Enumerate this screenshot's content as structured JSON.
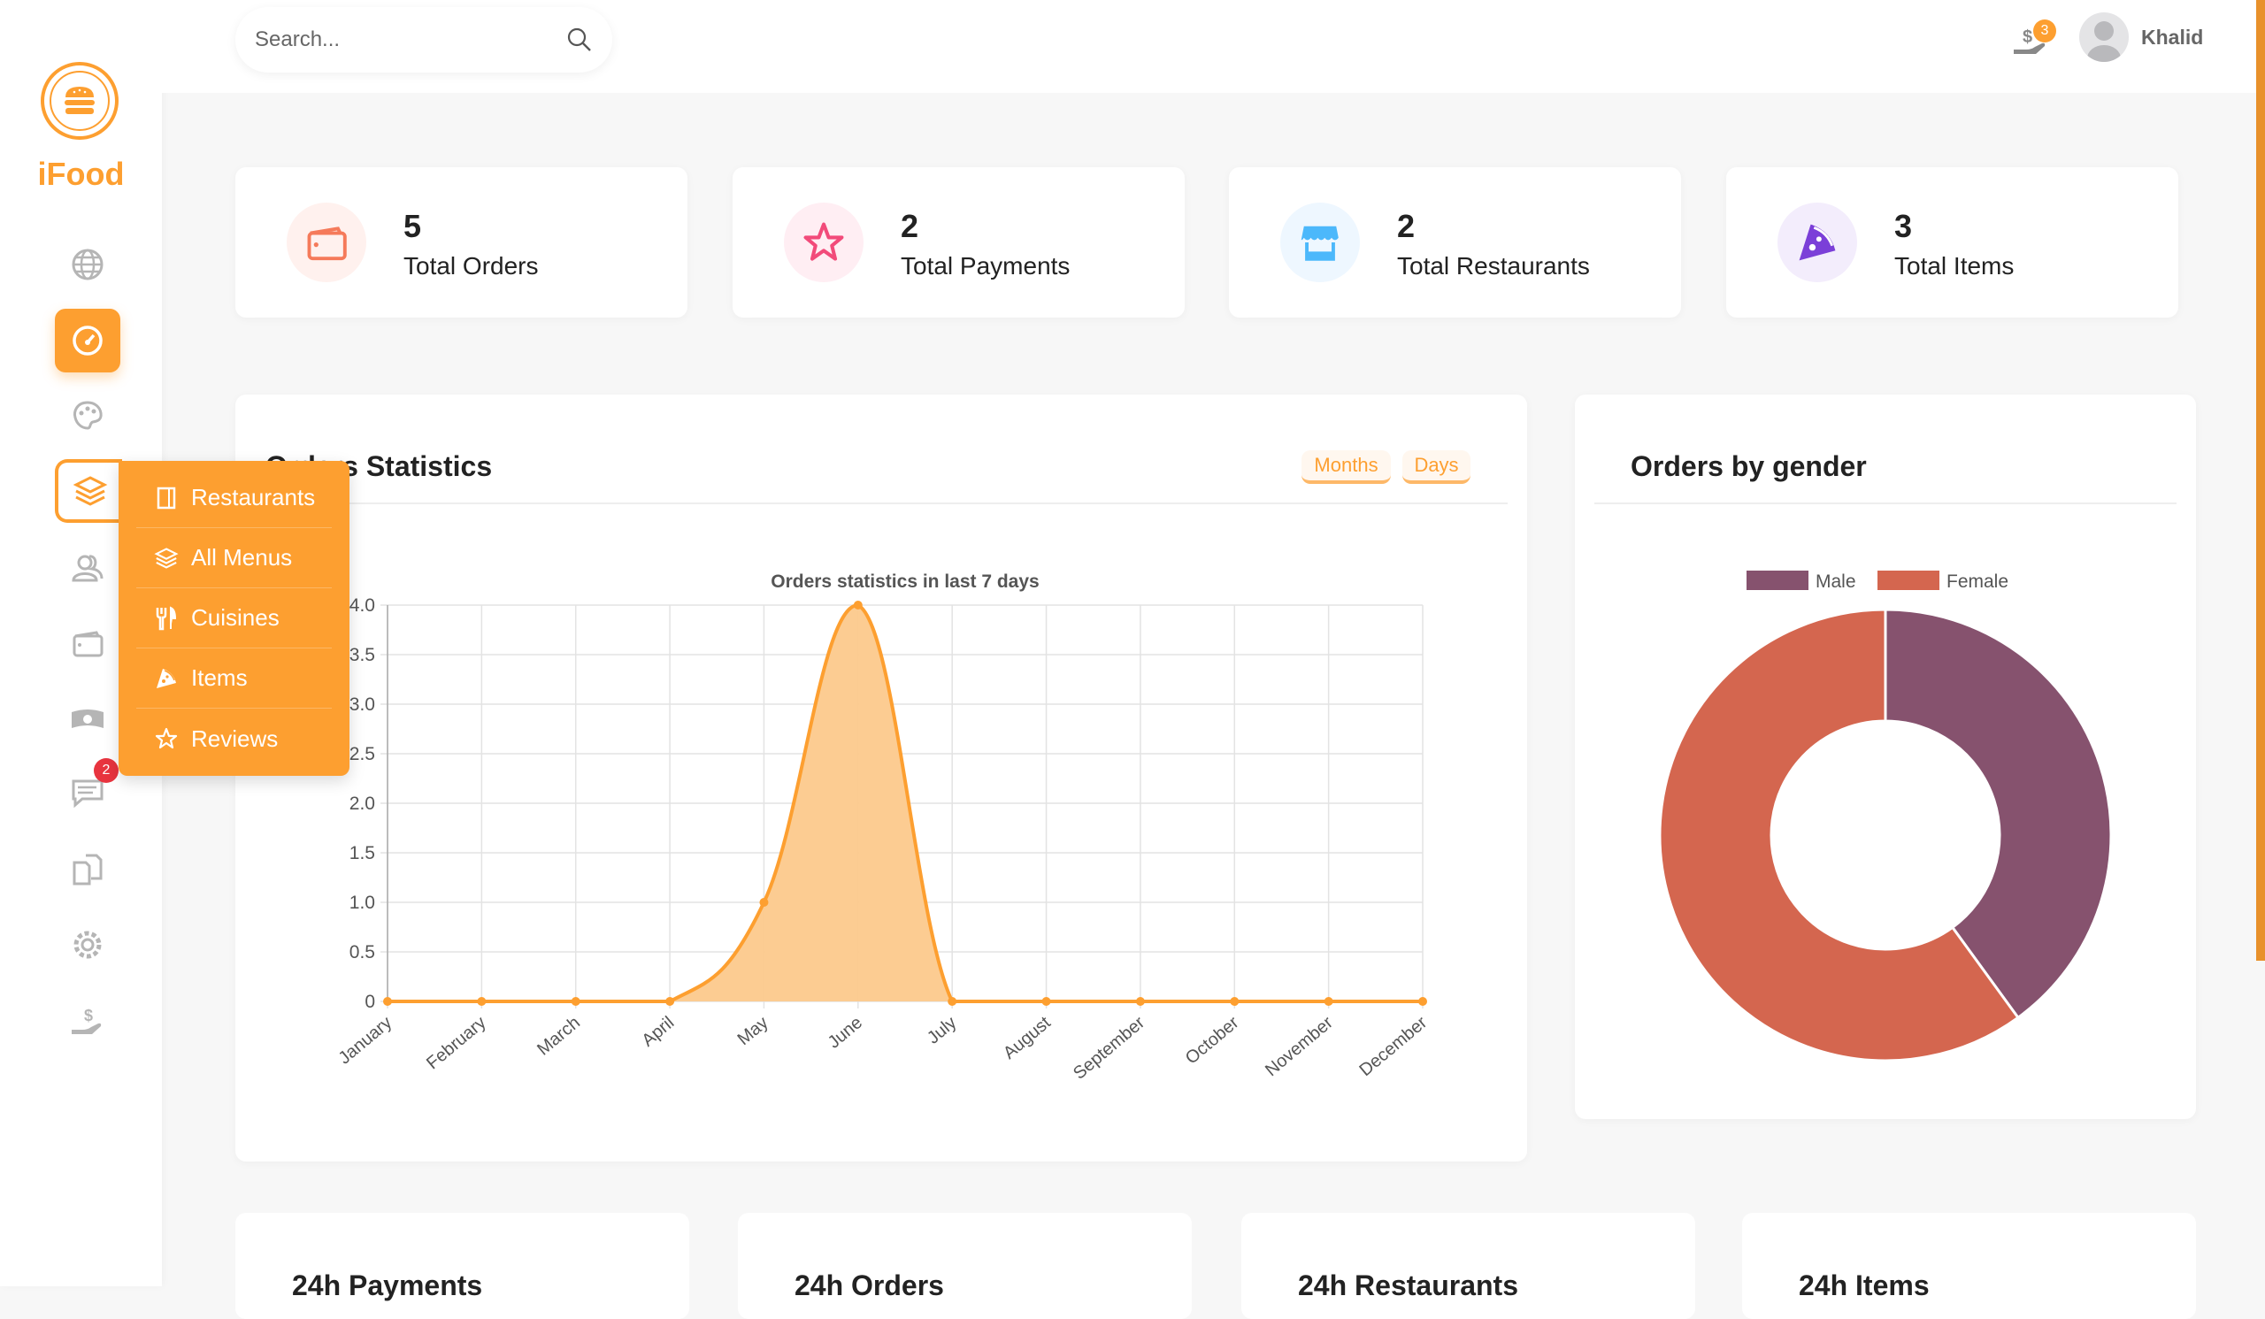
{
  "brand": {
    "name": "iFood",
    "accent": "#fd9f30"
  },
  "sidebar": {
    "items": [
      {
        "icon": "globe-icon"
      },
      {
        "icon": "dashboard-gauge-icon",
        "active": true
      },
      {
        "icon": "palette-icon"
      },
      {
        "icon": "layers-icon",
        "open": true
      },
      {
        "icon": "users-icon"
      },
      {
        "icon": "wallet-icon"
      },
      {
        "icon": "money-icon"
      },
      {
        "icon": "chat-icon",
        "badge": "2"
      },
      {
        "icon": "documents-icon"
      },
      {
        "icon": "gear-icon"
      },
      {
        "icon": "hand-dollar-icon"
      }
    ],
    "dropdown": [
      {
        "label": "Restaurants",
        "icon": "notebook-icon"
      },
      {
        "label": "All Menus",
        "icon": "layers-icon"
      },
      {
        "label": "Cuisines",
        "icon": "utensils-icon"
      },
      {
        "label": "Items",
        "icon": "pizza-icon"
      },
      {
        "label": "Reviews",
        "icon": "star-icon"
      }
    ]
  },
  "header": {
    "search_placeholder": "Search...",
    "notif_count": "3",
    "user": "Khalid"
  },
  "stats": [
    {
      "value": "5",
      "label": "Total Orders",
      "icon": "wallet-icon",
      "color": "#f57a5a",
      "bg": "#fff1ee"
    },
    {
      "value": "2",
      "label": "Total Payments",
      "icon": "star-icon",
      "color": "#f24b7a",
      "bg": "#ffeef3"
    },
    {
      "value": "2",
      "label": "Total Restaurants",
      "icon": "store-icon",
      "color": "#4cb8fb",
      "bg": "#eef7ff"
    },
    {
      "value": "3",
      "label": "Total Items",
      "icon": "pizza-icon",
      "color": "#7b3fd8",
      "bg": "#f3edfc"
    }
  ],
  "orders_card": {
    "title": "Orders Statistics",
    "buttons": [
      "Months",
      "Days"
    ]
  },
  "gender_card": {
    "title": "Orders by gender"
  },
  "bottom": [
    "24h Payments",
    "24h Orders",
    "24h Restaurants",
    "24h Items"
  ],
  "chart_data": [
    {
      "type": "area",
      "title": "Orders statistics in last 7 days",
      "categories": [
        "January",
        "February",
        "March",
        "April",
        "May",
        "June",
        "July",
        "August",
        "September",
        "October",
        "November",
        "December"
      ],
      "values": [
        0,
        0,
        0,
        0,
        1,
        4,
        0,
        0,
        0,
        0,
        0,
        0
      ],
      "ylim": [
        0,
        4
      ],
      "yticks": [
        "0",
        "0.5",
        "1.0",
        "1.5",
        "2.0",
        "2.5",
        "3.0",
        "3.5",
        "4.0"
      ],
      "grid": true,
      "color": "#fd9f30",
      "fill": "#fcc98c"
    },
    {
      "type": "pie",
      "donut": true,
      "legend": "top",
      "series": [
        {
          "name": "Male",
          "value": 2,
          "color": "#86526e"
        },
        {
          "name": "Female",
          "value": 3,
          "color": "#d4664f"
        }
      ]
    }
  ]
}
